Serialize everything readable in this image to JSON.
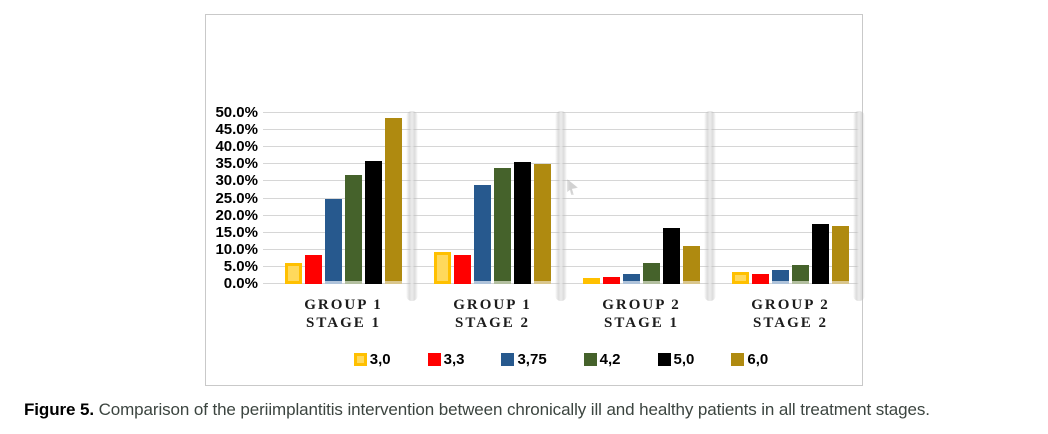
{
  "figure": {
    "caption_label": "Figure 5.",
    "caption_text": "Comparison of the periimplantitis intervention between chronically ill and healthy patients in all treatment stages."
  },
  "colors": {
    "gridline": "#d6d6d6",
    "panel_border": "#c9c9c9",
    "axis_text": "#000000",
    "caption_text": "#3c4540"
  },
  "chart_data": {
    "type": "bar",
    "title": "",
    "xlabel": "",
    "ylabel": "",
    "ylim": [
      0,
      50
    ],
    "ytick_step": 5,
    "ytick_labels": [
      "0.0%",
      "5.0%",
      "10.0%",
      "15.0%",
      "20.0%",
      "25.0%",
      "30.0%",
      "35.0%",
      "40.0%",
      "45.0%",
      "50.0%"
    ],
    "grid": true,
    "legend_position": "bottom",
    "categories": [
      {
        "line1": "GROUP 1",
        "line2": "STAGE 1"
      },
      {
        "line1": "GROUP 1",
        "line2": "STAGE 2"
      },
      {
        "line1": "GROUP 2",
        "line2": "STAGE 1"
      },
      {
        "line1": "GROUP 2",
        "line2": "STAGE 2"
      }
    ],
    "series": [
      {
        "name": "3,0",
        "color": "#FFD95C",
        "border": "#FFC000",
        "values": [
          6.0,
          9.5,
          1.5,
          3.5
        ]
      },
      {
        "name": "3,3",
        "color": "#FF0000",
        "values": [
          8.5,
          8.5,
          2.0,
          3.0
        ]
      },
      {
        "name": "3,75",
        "color": "#27598E",
        "edge": "#AFC3DA",
        "values": [
          25.0,
          29.0,
          3.0,
          4.0
        ]
      },
      {
        "name": "4,2",
        "color": "#45622B",
        "edge": "#B3BFA0",
        "values": [
          32.0,
          34.0,
          6.0,
          5.5
        ]
      },
      {
        "name": "5,0",
        "color": "#000000",
        "values": [
          36.0,
          35.8,
          16.5,
          17.5
        ]
      },
      {
        "name": "6,0",
        "color": "#AF8A10",
        "edge": "#D9C68D",
        "values": [
          48.5,
          35.2,
          11.0,
          17.0
        ]
      }
    ]
  }
}
